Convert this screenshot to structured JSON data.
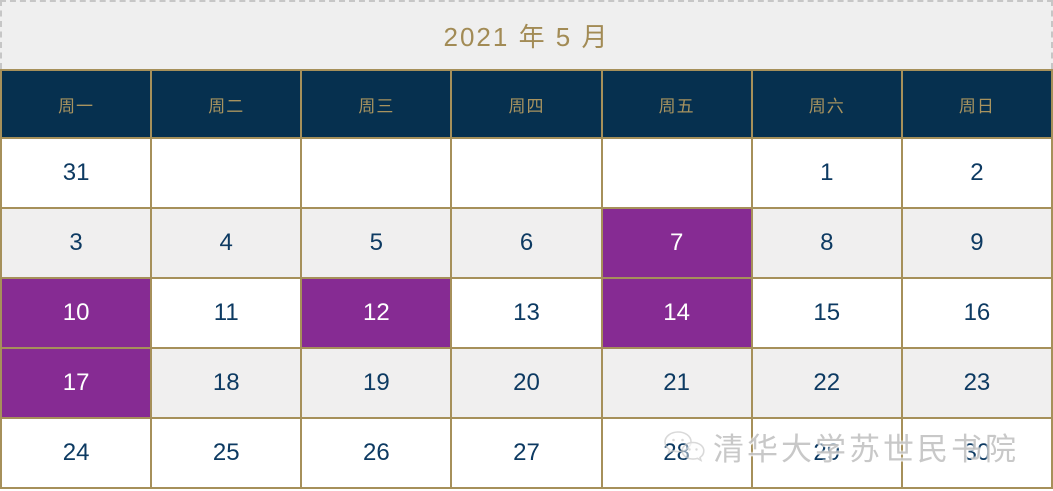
{
  "calendar": {
    "title": "2021 年 5 月",
    "weekday_headers": [
      "周一",
      "周二",
      "周三",
      "周四",
      "周五",
      "周六",
      "周日"
    ],
    "weeks": [
      {
        "shade": "white",
        "days": [
          {
            "label": "31",
            "highlight": false
          },
          {
            "label": "",
            "highlight": false
          },
          {
            "label": "",
            "highlight": false
          },
          {
            "label": "",
            "highlight": false
          },
          {
            "label": "",
            "highlight": false
          },
          {
            "label": "1",
            "highlight": false
          },
          {
            "label": "2",
            "highlight": false
          }
        ]
      },
      {
        "shade": "gray",
        "days": [
          {
            "label": "3",
            "highlight": false
          },
          {
            "label": "4",
            "highlight": false
          },
          {
            "label": "5",
            "highlight": false
          },
          {
            "label": "6",
            "highlight": false
          },
          {
            "label": "7",
            "highlight": true
          },
          {
            "label": "8",
            "highlight": false
          },
          {
            "label": "9",
            "highlight": false
          }
        ]
      },
      {
        "shade": "white",
        "days": [
          {
            "label": "10",
            "highlight": true
          },
          {
            "label": "11",
            "highlight": false
          },
          {
            "label": "12",
            "highlight": true
          },
          {
            "label": "13",
            "highlight": false
          },
          {
            "label": "14",
            "highlight": true
          },
          {
            "label": "15",
            "highlight": false
          },
          {
            "label": "16",
            "highlight": false
          }
        ]
      },
      {
        "shade": "gray",
        "days": [
          {
            "label": "17",
            "highlight": true
          },
          {
            "label": "18",
            "highlight": false
          },
          {
            "label": "19",
            "highlight": false
          },
          {
            "label": "20",
            "highlight": false
          },
          {
            "label": "21",
            "highlight": false
          },
          {
            "label": "22",
            "highlight": false
          },
          {
            "label": "23",
            "highlight": false
          }
        ]
      },
      {
        "shade": "white",
        "days": [
          {
            "label": "24",
            "highlight": false
          },
          {
            "label": "25",
            "highlight": false
          },
          {
            "label": "26",
            "highlight": false
          },
          {
            "label": "27",
            "highlight": false
          },
          {
            "label": "28",
            "highlight": false
          },
          {
            "label": "29",
            "highlight": false
          },
          {
            "label": "30",
            "highlight": false
          }
        ]
      }
    ],
    "highlighted_dates": [
      "7",
      "10",
      "12",
      "14",
      "17"
    ]
  },
  "watermark": {
    "icon": "wechat-icon",
    "text": "清华大学苏世民书院"
  },
  "colors": {
    "header_bg": "#06304f",
    "header_text": "#a8935f",
    "border_gold": "#a6905a",
    "highlight_purple": "#862b93",
    "date_text": "#0d3a62",
    "row_alt_bg": "#f0efef",
    "title_bg": "#efefef",
    "title_text": "#a28b55"
  }
}
